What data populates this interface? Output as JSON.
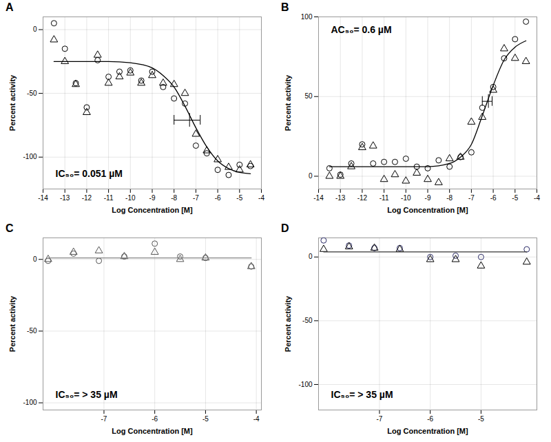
{
  "chart_data": [
    {
      "type": "scatter",
      "title": "A",
      "x_label": "Log Concentration [M]",
      "y_label": "Percent activity",
      "xlim": [
        -14,
        -4
      ],
      "xticks": [
        -14,
        -13,
        -12,
        -11,
        -10,
        -9,
        -8,
        -7,
        -6,
        -5,
        -4
      ],
      "ylim": [
        -125,
        10
      ],
      "yticks": [
        0,
        -50,
        -100
      ],
      "grid": true,
      "annotation": "IC₅₀= 0.051 µM",
      "error_bar": {
        "x": -7.29,
        "xlow": -8.0,
        "xhigh": -6.8,
        "y": -71
      },
      "series": [
        {
          "marker": "circle",
          "color": "#000000",
          "x": [
            -13.5,
            -13,
            -12.5,
            -12,
            -11.5,
            -11,
            -10.5,
            -10,
            -9.5,
            -9,
            -8.5,
            -8,
            -7.5,
            -7,
            -6.5,
            -6,
            -5.5,
            -5,
            -4.5
          ],
          "values": [
            5,
            -15,
            -42,
            -61,
            -24,
            -37,
            -33,
            -32,
            -40,
            -33,
            -45,
            -54,
            -58,
            -91,
            -97,
            -110,
            -114,
            -106,
            -107
          ]
        },
        {
          "marker": "triangle",
          "color": "#000000",
          "x": [
            -13.5,
            -13,
            -12.5,
            -12,
            -11.5,
            -11,
            -10.5,
            -10,
            -9.5,
            -9,
            -8.5,
            -8,
            -7.5,
            -7,
            -6.5,
            -6,
            -5.5,
            -5,
            -4.5
          ],
          "values": [
            -8,
            -25,
            -43,
            -65,
            -20,
            -42,
            -37,
            -34,
            -42,
            -36,
            -42,
            -43,
            -50,
            -82,
            -95,
            -102,
            -108,
            -110,
            -106
          ]
        },
        {
          "type": "line",
          "color": "#000000",
          "x": [
            -13.5,
            -12,
            -11,
            -10,
            -9,
            -8.5,
            -8,
            -7.5,
            -7,
            -6.5,
            -6,
            -5.5,
            -5,
            -4.5
          ],
          "values": [
            -25,
            -25,
            -25,
            -26,
            -30,
            -36,
            -45,
            -60,
            -77,
            -92,
            -103,
            -109,
            -112,
            -113
          ]
        }
      ]
    },
    {
      "type": "scatter",
      "title": "B",
      "x_label": "Log Concentration [M]",
      "y_label": "Percent activity",
      "xlim": [
        -14,
        -4
      ],
      "xticks": [
        -14,
        -13,
        -12,
        -11,
        -10,
        -9,
        -8,
        -7,
        -6,
        -5,
        -4
      ],
      "ylim": [
        -8,
        100
      ],
      "yticks": [
        0,
        50,
        100
      ],
      "grid": true,
      "annotation": "AC₅₀= 0.6 µM",
      "error_bar": {
        "x": -6.22,
        "xlow": -6.5,
        "xhigh": -6.05,
        "y": 47
      },
      "series": [
        {
          "marker": "circle",
          "color": "#000000",
          "x": [
            -13.5,
            -13,
            -12.5,
            -12,
            -11.5,
            -11,
            -10.5,
            -10,
            -9.5,
            -9,
            -8.5,
            -8,
            -7.5,
            -7,
            -6.5,
            -6,
            -5.5,
            -5,
            -4.5
          ],
          "values": [
            5,
            1,
            8,
            20,
            8,
            9,
            9,
            11,
            6,
            5,
            10,
            6,
            12,
            15,
            43,
            56,
            74,
            86,
            97
          ]
        },
        {
          "marker": "triangle",
          "color": "#000000",
          "x": [
            -13.5,
            -13,
            -12.5,
            -12,
            -11.5,
            -11,
            -10.5,
            -10,
            -9.5,
            -9,
            -8.5,
            -8,
            -7.5,
            -7,
            -6.5,
            -6,
            -5.5,
            -5,
            -4.5
          ],
          "values": [
            0,
            0,
            6,
            18,
            19,
            -2,
            1,
            -3,
            2,
            -2,
            -4,
            11,
            12,
            34,
            37,
            54,
            80,
            74,
            72
          ]
        },
        {
          "type": "line",
          "color": "#000000",
          "x": [
            -13.5,
            -11,
            -9,
            -8,
            -7.5,
            -7,
            -6.5,
            -6,
            -5.5,
            -5,
            -4.5
          ],
          "values": [
            6,
            6,
            6,
            8,
            12,
            20,
            38,
            57,
            73,
            81,
            85
          ]
        }
      ]
    },
    {
      "type": "scatter",
      "title": "C",
      "x_label": "Log Concentration [M]",
      "y_label": "Percent activity",
      "xlim": [
        -8.2,
        -3.9
      ],
      "xticks": [
        -7,
        -6,
        -5,
        -4
      ],
      "ylim": [
        -105,
        15
      ],
      "yticks": [
        0,
        -50,
        -100
      ],
      "grid": true,
      "annotation": "IC₅₀= > 35 µM",
      "series": [
        {
          "marker": "circle",
          "color": "#555555",
          "x": [
            -8.1,
            -7.6,
            -7.1,
            -6.6,
            -6.0,
            -5.5,
            -5.0,
            -4.1
          ],
          "values": [
            -1,
            4,
            -1,
            2,
            11,
            2,
            1,
            -5
          ]
        },
        {
          "marker": "triangle",
          "color": "#555555",
          "x": [
            -8.1,
            -7.6,
            -7.1,
            -6.6,
            -6.0,
            -5.5,
            -5.0,
            -4.1
          ],
          "values": [
            0,
            5,
            6,
            2,
            5,
            0,
            1,
            -5
          ]
        },
        {
          "type": "line",
          "color": "#888888",
          "x": [
            -8.1,
            -4.1
          ],
          "values": [
            1,
            1
          ]
        }
      ]
    },
    {
      "type": "scatter",
      "title": "D",
      "x_label": "Log Concentration [M]",
      "y_label": "Percent activity",
      "xlim": [
        -8.2,
        -3.9
      ],
      "xticks": [
        -7,
        -6,
        -5
      ],
      "ylim": [
        -120,
        15
      ],
      "yticks": [
        0,
        -50,
        -100
      ],
      "grid": true,
      "annotation": "IC₅₀= > 35 µM",
      "series": [
        {
          "marker": "circle",
          "color": "#2a2a66",
          "x": [
            -8.1,
            -7.6,
            -7.1,
            -6.6,
            -6.0,
            -5.5,
            -5.0,
            -4.1
          ],
          "values": [
            13,
            9,
            7,
            7,
            0,
            1,
            0,
            6
          ]
        },
        {
          "marker": "triangle",
          "color": "#000000",
          "x": [
            -8.1,
            -7.6,
            -7.1,
            -6.6,
            -6.0,
            -5.5,
            -5.0,
            -4.1
          ],
          "values": [
            6,
            8,
            7,
            6,
            -2,
            -2,
            -7,
            -4
          ]
        },
        {
          "type": "line",
          "color": "#333333",
          "x": [
            -8.1,
            -4.1
          ],
          "values": [
            4,
            4
          ]
        }
      ]
    }
  ]
}
